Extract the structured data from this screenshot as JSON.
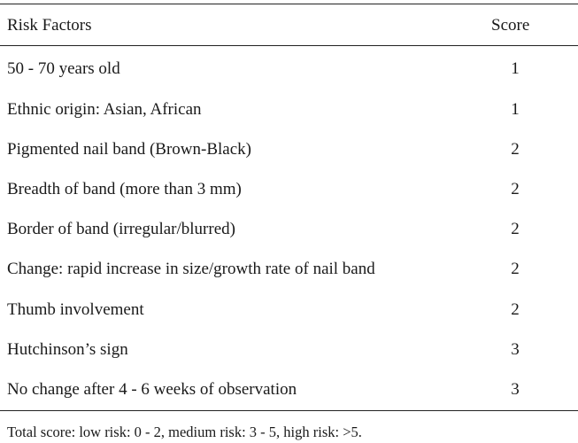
{
  "table": {
    "header": {
      "factor": "Risk Factors",
      "score": "Score"
    },
    "rows": [
      {
        "factor": "50 - 70 years old",
        "score": "1"
      },
      {
        "factor": "Ethnic origin: Asian, African",
        "score": "1"
      },
      {
        "factor": "Pigmented nail band (Brown-Black)",
        "score": "2"
      },
      {
        "factor": "Breadth of band (more than 3 mm)",
        "score": "2"
      },
      {
        "factor": "Border of band (irregular/blurred)",
        "score": "2"
      },
      {
        "factor": "Change: rapid increase in size/growth rate of nail band",
        "score": "2"
      },
      {
        "factor": "Thumb involvement",
        "score": "2"
      },
      {
        "factor": "Hutchinson’s sign",
        "score": "3"
      },
      {
        "factor": "No change after 4 - 6 weeks of observation",
        "score": "3"
      }
    ],
    "footnote": "Total score: low risk: 0 - 2, medium risk: 3 - 5, high risk: >5."
  }
}
